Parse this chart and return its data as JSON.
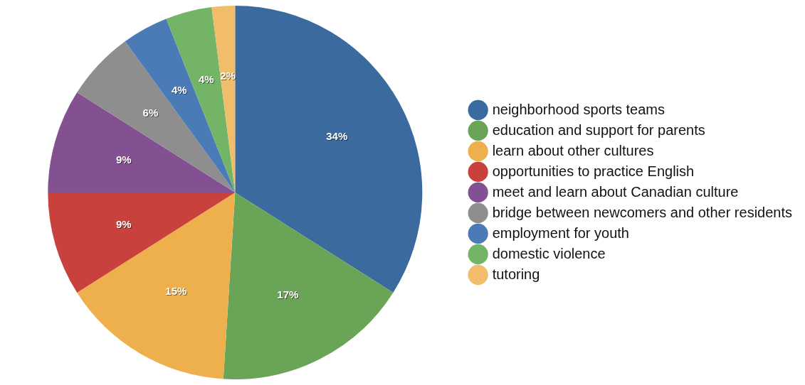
{
  "chart_data": {
    "type": "pie",
    "categories": [
      "neighborhood sports teams",
      "education and support for parents",
      "learn about other cultures",
      "opportunities to practice English",
      "meet and learn about Canadian culture",
      "bridge between newcomers and other residents",
      "employment for youth",
      "domestic violence",
      "tutoring"
    ],
    "values": [
      34,
      17,
      15,
      9,
      9,
      6,
      4,
      4,
      2
    ],
    "value_labels": [
      "34%",
      "17%",
      "15%",
      "9%",
      "9%",
      "6%",
      "4%",
      "4%",
      "2%"
    ],
    "colors": [
      "#3b6a9e",
      "#6aa457",
      "#eeb04c",
      "#c8413c",
      "#835191",
      "#8e8e8e",
      "#4b7bb6",
      "#74b466",
      "#f2bd6a"
    ],
    "legend": "right"
  }
}
